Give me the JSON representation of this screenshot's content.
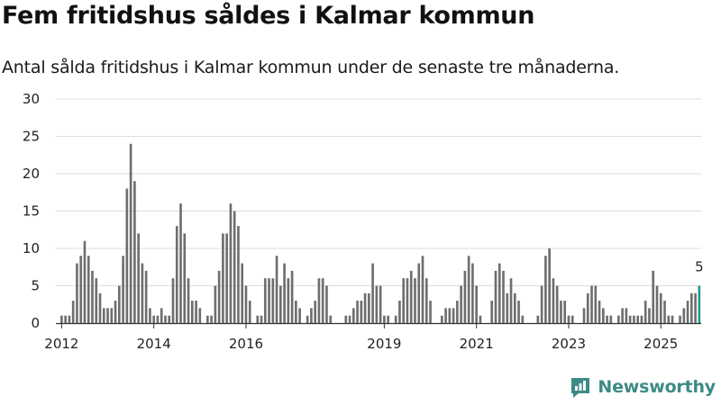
{
  "header": {
    "title": "Fem fritidshus såldes i Kalmar kommun",
    "subtitle": "Antal sålda fritidshus i Kalmar kommun under de senaste tre månaderna."
  },
  "brand": {
    "name": "Newsworthy",
    "icon": "newsworthy-logo-icon",
    "color": "#3d8a86"
  },
  "colors": {
    "bar": "#6e6e70",
    "highlight": "#1d9a92",
    "grid": "#dddddd",
    "axis": "#333333"
  },
  "chart_data": {
    "type": "bar",
    "title": "Fem fritidshus såldes i Kalmar kommun",
    "subtitle": "Antal sålda fritidshus i Kalmar kommun under de senaste tre månaderna.",
    "xlabel": "",
    "ylabel": "",
    "ylim": [
      0,
      30
    ],
    "yticks": [
      0,
      5,
      10,
      15,
      20,
      25,
      30
    ],
    "grid": true,
    "legend": "none",
    "x_start": "2011-12",
    "xticks": [
      {
        "label": "2012",
        "index": 1
      },
      {
        "label": "2014",
        "index": 25
      },
      {
        "label": "2016",
        "index": 49
      },
      {
        "label": "2019",
        "index": 85
      },
      {
        "label": "2021",
        "index": 109
      },
      {
        "label": "2023",
        "index": 133
      },
      {
        "label": "2025",
        "index": 157
      }
    ],
    "values": [
      0,
      1,
      1,
      1,
      3,
      8,
      9,
      11,
      9,
      7,
      6,
      4,
      2,
      2,
      2,
      3,
      5,
      9,
      18,
      24,
      19,
      12,
      8,
      7,
      2,
      1,
      1,
      2,
      1,
      1,
      6,
      13,
      16,
      12,
      6,
      3,
      3,
      2,
      0,
      1,
      1,
      5,
      7,
      12,
      12,
      16,
      15,
      13,
      8,
      5,
      3,
      0,
      1,
      1,
      6,
      6,
      6,
      9,
      5,
      8,
      6,
      7,
      3,
      2,
      0,
      1,
      2,
      3,
      6,
      6,
      5,
      1,
      0,
      0,
      0,
      1,
      1,
      2,
      3,
      3,
      4,
      4,
      8,
      5,
      5,
      1,
      1,
      0,
      1,
      3,
      6,
      6,
      7,
      6,
      8,
      9,
      6,
      3,
      0,
      0,
      1,
      2,
      2,
      2,
      3,
      5,
      7,
      9,
      8,
      5,
      1,
      0,
      0,
      3,
      7,
      8,
      7,
      4,
      6,
      4,
      3,
      1,
      0,
      0,
      0,
      1,
      5,
      9,
      10,
      6,
      5,
      3,
      3,
      1,
      1,
      0,
      0,
      2,
      4,
      5,
      5,
      3,
      2,
      1,
      1,
      0,
      1,
      2,
      2,
      1,
      1,
      1,
      1,
      3,
      2,
      7,
      5,
      4,
      3,
      1,
      1,
      0,
      1,
      2,
      3,
      4,
      4,
      5
    ],
    "highlight_index": 167,
    "annotations": [
      {
        "index": 167,
        "label": "5"
      }
    ]
  }
}
